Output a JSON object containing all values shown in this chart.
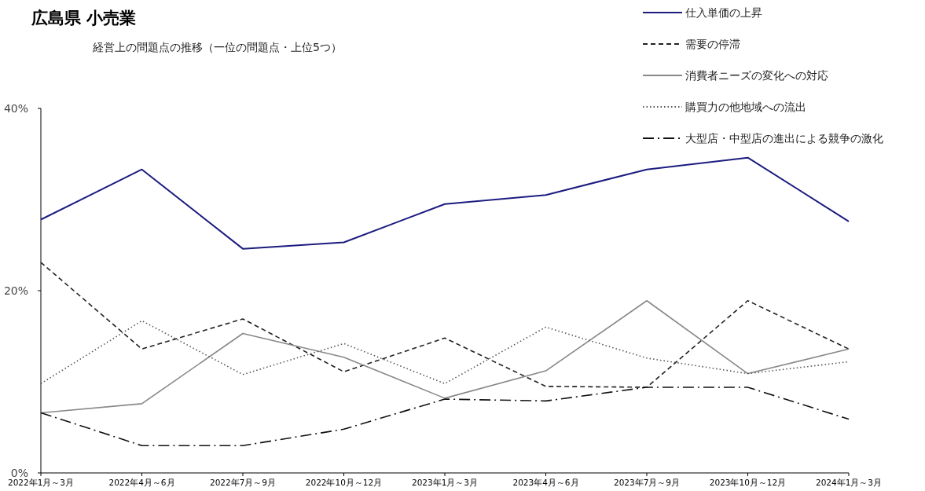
{
  "chart_data": {
    "type": "line",
    "title": "広島県 小売業",
    "subtitle": "経営上の問題点の推移（一位の問題点・上位5つ）",
    "categories": [
      "2022年1月～3月",
      "2022年4月～6月",
      "2022年7月～9月",
      "2022年10月～12月",
      "2023年1月～3月",
      "2023年4月～6月",
      "2023年7月～9月",
      "2023年10月～12月",
      "2024年1月～3月"
    ],
    "ylim": [
      0,
      40
    ],
    "yticks": [
      {
        "value": 0,
        "label": "0%"
      },
      {
        "value": 20,
        "label": "20%"
      },
      {
        "value": 40,
        "label": "40%"
      }
    ],
    "grid": false,
    "legend": "top right",
    "marker": "none",
    "series": [
      {
        "name": "仕入単価の上昇",
        "color": "#1c1c80",
        "line_style": "solid",
        "values": [
          27.8,
          33.3,
          24.6,
          25.3,
          29.5,
          30.5,
          33.3,
          34.6,
          27.6
        ]
      },
      {
        "name": "需要の停滞",
        "color": "#222222",
        "line_style": "dashed",
        "values": [
          23.1,
          13.6,
          16.9,
          11.1,
          14.8,
          9.5,
          9.4,
          18.9,
          13.6
        ]
      },
      {
        "name": "消費者ニーズの変化への対応",
        "color": "#888888",
        "line_style": "solid",
        "values": [
          6.6,
          7.6,
          15.3,
          12.7,
          8.2,
          11.2,
          18.9,
          10.9,
          13.6
        ]
      },
      {
        "name": "購買力の他地域への流出",
        "color": "#555555",
        "line_style": "dotted",
        "values": [
          9.8,
          16.7,
          10.8,
          14.2,
          9.8,
          16.0,
          12.6,
          10.9,
          12.2
        ]
      },
      {
        "name": "大型店・中型店の進出による競争の激化",
        "color": "#111111",
        "line_style": "dashdot",
        "values": [
          6.6,
          3.0,
          3.0,
          4.8,
          8.1,
          7.9,
          9.4,
          9.4,
          5.9
        ]
      }
    ]
  }
}
